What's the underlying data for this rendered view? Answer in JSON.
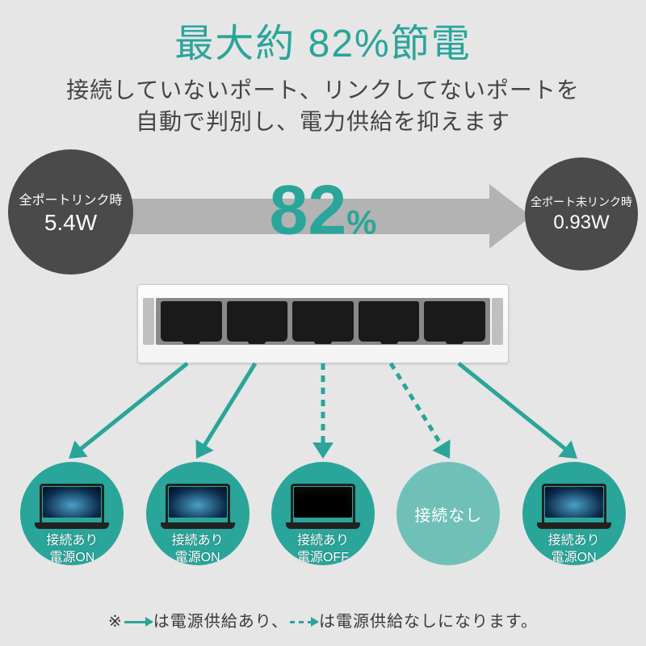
{
  "colors": {
    "teal": "#2aa59a",
    "teal_light": "#6fc1b8",
    "gray_circle": "#4a4a4a",
    "arrow_gray": "#b3b3b3",
    "bg": "#e6e6e6",
    "text_dark": "#3a3a3a"
  },
  "title": "最大約 82%節電",
  "subtitle_l1": "接続していないポート、リンクしてないポートを",
  "subtitle_l2": "自動で判別し、電力供給を抑えます",
  "left_circle": {
    "label": "全ポートリンク時",
    "value": "5.4W"
  },
  "right_circle": {
    "label": "全ポート未リンク時",
    "value": "0.93W"
  },
  "center_percent": {
    "number": "82",
    "unit": "%"
  },
  "ports": [
    {
      "status": "on",
      "arrow": "solid",
      "disc_color": "#2aa59a",
      "caption_l1": "接続あり",
      "caption_l2": "電源ON"
    },
    {
      "status": "on",
      "arrow": "solid",
      "disc_color": "#2aa59a",
      "caption_l1": "接続あり",
      "caption_l2": "電源ON"
    },
    {
      "status": "off",
      "arrow": "dashed",
      "disc_color": "#2aa59a",
      "caption_l1": "接続あり",
      "caption_l2": "電源OFF"
    },
    {
      "status": "none",
      "arrow": "dashed",
      "disc_color": "#6fc1b8",
      "caption_none": "接続なし"
    },
    {
      "status": "on",
      "arrow": "solid",
      "disc_color": "#2aa59a",
      "caption_l1": "接続あり",
      "caption_l2": "電源ON"
    }
  ],
  "footnote": {
    "prefix": "※",
    "solid_text": "は電源供給あり、",
    "dashed_text": "は電源供給なしになります。"
  }
}
